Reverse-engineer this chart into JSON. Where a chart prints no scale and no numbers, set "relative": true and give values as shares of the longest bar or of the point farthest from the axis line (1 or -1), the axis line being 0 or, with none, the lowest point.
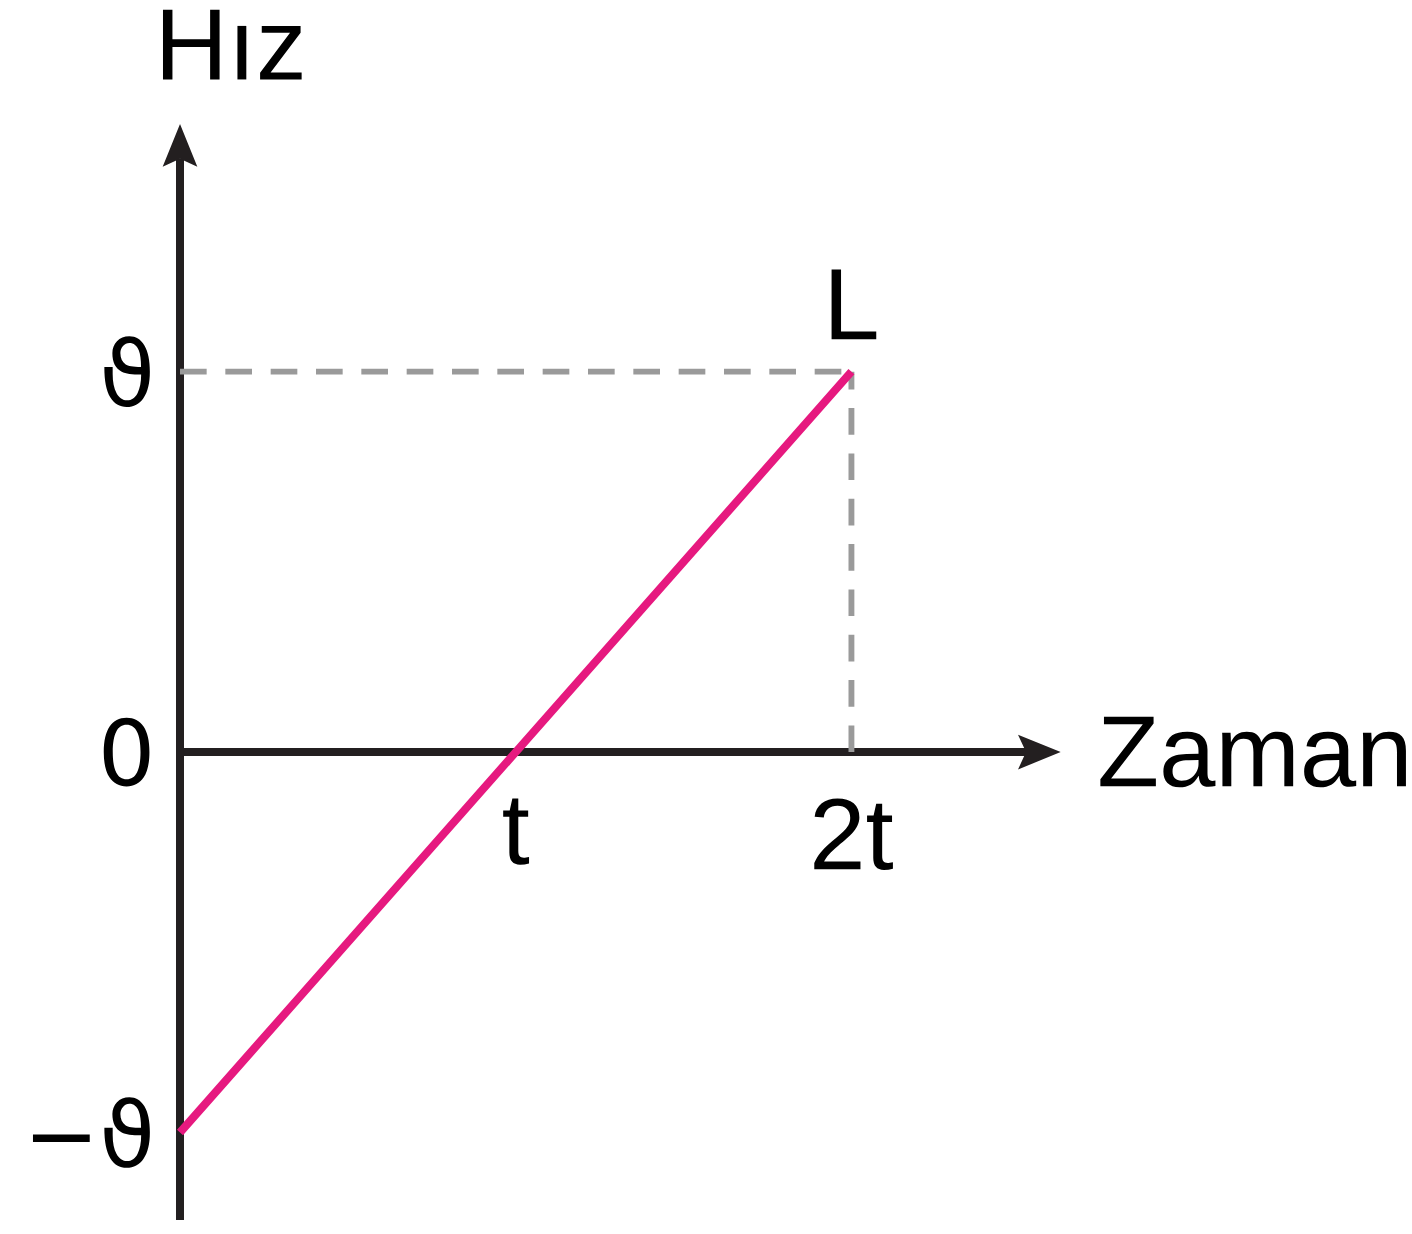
{
  "chart_data": {
    "type": "line",
    "relative": true,
    "xlabel": "Zaman",
    "ylabel": "Hız",
    "categories": [
      null,
      "t",
      "2t"
    ],
    "series": [
      {
        "color": "#e6197f",
        "values": [
          -1,
          0,
          1
        ]
      }
    ],
    "ref_lines": [
      {
        "axis": "y",
        "value": 1,
        "label": "ϑ",
        "color": "#9a9a9a",
        "line_style": "dashed"
      },
      {
        "axis": "x",
        "value": "2t",
        "color": "#9a9a9a",
        "line_style": "dashed"
      }
    ],
    "annotations": [
      {
        "text": "L",
        "x": "2t",
        "y": 1
      },
      "0",
      "−ϑ"
    ],
    "line_style": "solid"
  }
}
